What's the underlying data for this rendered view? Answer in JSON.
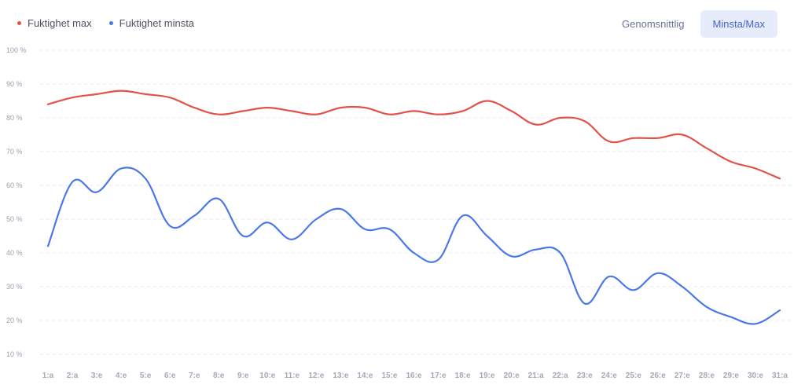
{
  "legend": {
    "max_label": "Fuktighet max",
    "min_label": "Fuktighet minsta"
  },
  "toggle": {
    "average_label": "Genomsnittlig",
    "minmax_label": "Minsta/Max"
  },
  "colors": {
    "max": "#e1534a",
    "min": "#4a78e8",
    "grid": "#e6e8ee"
  },
  "chart_data": {
    "type": "line",
    "categories": [
      "1:a",
      "2:a",
      "3:e",
      "4:e",
      "5:e",
      "6:e",
      "7:e",
      "8:e",
      "9:e",
      "10:e",
      "11:e",
      "12:e",
      "13:e",
      "14:e",
      "15:e",
      "16:e",
      "17:e",
      "18:e",
      "19:e",
      "20:e",
      "21:a",
      "22:a",
      "23:e",
      "24:e",
      "25:e",
      "26:e",
      "27:e",
      "28:e",
      "29:e",
      "30:e",
      "31:a"
    ],
    "y_ticks": [
      "100 %",
      "90 %",
      "80 %",
      "70 %",
      "60 %",
      "50 %",
      "40 %",
      "30 %",
      "20 %",
      "10 %"
    ],
    "ylim": [
      10,
      100
    ],
    "grid": true,
    "legend_position": "top-left",
    "series": [
      {
        "name": "Fuktighet max",
        "values": [
          84,
          86,
          87,
          88,
          87,
          86,
          83,
          81,
          82,
          83,
          82,
          81,
          83,
          83,
          81,
          82,
          81,
          82,
          85,
          82,
          78,
          80,
          79,
          73,
          74,
          74,
          75,
          71,
          67,
          65,
          62
        ]
      },
      {
        "name": "Fuktighet minsta",
        "values": [
          42,
          61,
          58,
          65,
          62,
          48,
          51,
          56,
          45,
          49,
          44,
          50,
          53,
          47,
          47,
          40,
          38,
          51,
          45,
          39,
          41,
          40,
          25,
          33,
          29,
          34,
          30,
          24,
          21,
          19,
          23
        ]
      }
    ]
  }
}
